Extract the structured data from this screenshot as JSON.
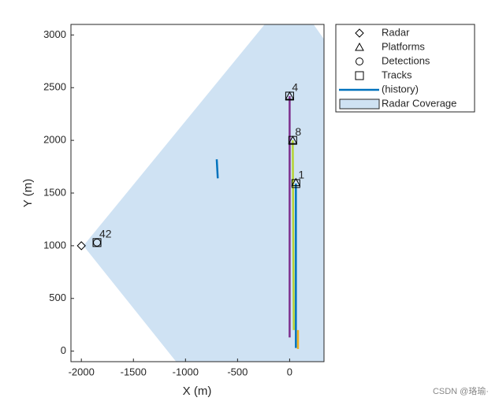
{
  "chart_data": {
    "type": "theater",
    "xlabel": "X (m)",
    "ylabel": "Y (m)",
    "xlim": [
      -2100,
      330
    ],
    "ylim": [
      -100,
      3100
    ],
    "xticks": [
      -2000,
      -1500,
      -1000,
      -500,
      0
    ],
    "yticks": [
      0,
      500,
      1000,
      1500,
      2000,
      2500,
      3000
    ],
    "coverage": {
      "color": "#cfe2f3",
      "x": [
        -1980,
        -240,
        230,
        330,
        330,
        -1090
      ],
      "y": [
        1000,
        3100,
        3100,
        2960,
        -100,
        -100
      ]
    },
    "history": [
      {
        "color": "#0072bd",
        "x": [
          -700,
          -690
        ],
        "y": [
          1820,
          1640
        ]
      },
      {
        "color": "#7e2f8e",
        "x": [
          0,
          0
        ],
        "y": [
          2420,
          130
        ]
      },
      {
        "color": "#b5d334",
        "x": [
          30,
          40
        ],
        "y": [
          2000,
          200
        ]
      },
      {
        "color": "#0072bd",
        "x": [
          60,
          60
        ],
        "y": [
          1590,
          30
        ]
      },
      {
        "color": "#edb120",
        "x": [
          80,
          80
        ],
        "y": [
          200,
          20
        ]
      }
    ],
    "markers": [
      {
        "shape": "diamond",
        "x": [
          -2000
        ],
        "y": [
          1000
        ]
      },
      {
        "shape": "triangle",
        "x": [
          0,
          30,
          60
        ],
        "y": [
          2420,
          2000,
          1600
        ]
      },
      {
        "shape": "circle",
        "x": [
          -1850
        ],
        "y": [
          1030
        ]
      },
      {
        "shape": "square",
        "x": [
          -1850,
          0,
          30,
          60
        ],
        "y": [
          1030,
          2420,
          2000,
          1590
        ],
        "labels": [
          "42",
          "4",
          "8",
          "1"
        ]
      }
    ],
    "legend": [
      {
        "label": "Radar",
        "marker": "diamond"
      },
      {
        "label": "Platforms",
        "marker": "triangle"
      },
      {
        "label": "Detections",
        "marker": "circle"
      },
      {
        "label": "Tracks",
        "marker": "square"
      },
      {
        "label": "(history)",
        "marker": "line",
        "color": "#0072bd"
      },
      {
        "label": "Radar Coverage",
        "marker": "patch",
        "color": "#cfe2f3"
      }
    ],
    "watermark": "CSDN @珞瑜·"
  }
}
